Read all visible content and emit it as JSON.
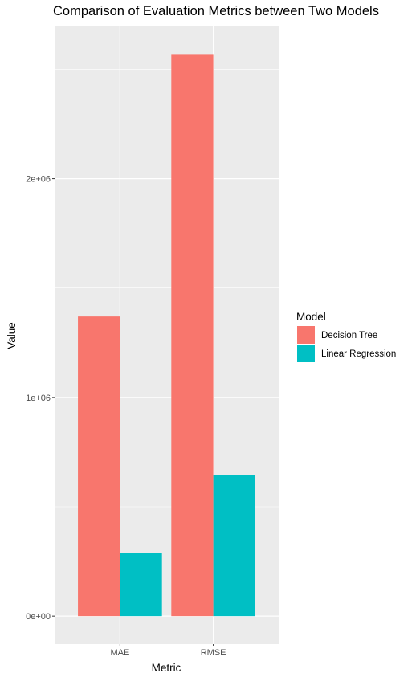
{
  "chart_data": {
    "type": "bar",
    "title": "Comparison of Evaluation Metrics between Two Models",
    "xlabel": "Metric",
    "ylabel": "Value",
    "categories": [
      "MAE",
      "RMSE"
    ],
    "series": [
      {
        "name": "Decision Tree",
        "values": [
          1370000,
          2570000
        ],
        "color": "#F8766D"
      },
      {
        "name": "Linear Regression",
        "values": [
          290000,
          645000
        ],
        "color": "#00BFC4"
      }
    ],
    "ylim": [
      -128000,
      2700000
    ],
    "y_ticks": [
      0,
      1000000,
      2000000
    ],
    "y_tick_labels": [
      "0e+00",
      "1e+06",
      "2e+06"
    ],
    "y_minor_ticks": [
      500000,
      1500000,
      2500000
    ],
    "legend_title": "Model",
    "legend_position": "right",
    "grid": true,
    "panel_background": "#EBEBEB",
    "grid_color": "#FFFFFF"
  }
}
